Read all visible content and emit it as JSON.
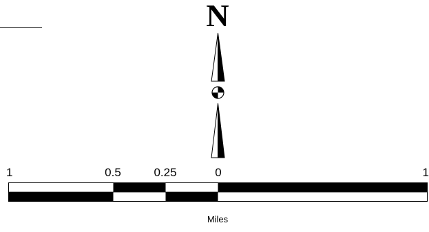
{
  "north_arrow": {
    "letter": "N",
    "icon": "north-arrow-icon"
  },
  "scale_bar": {
    "ticks": [
      "1",
      "0.5",
      "0.25",
      "0",
      "1"
    ],
    "units": "Miles"
  },
  "colors": {
    "ink": "#000000",
    "paper": "#ffffff"
  }
}
